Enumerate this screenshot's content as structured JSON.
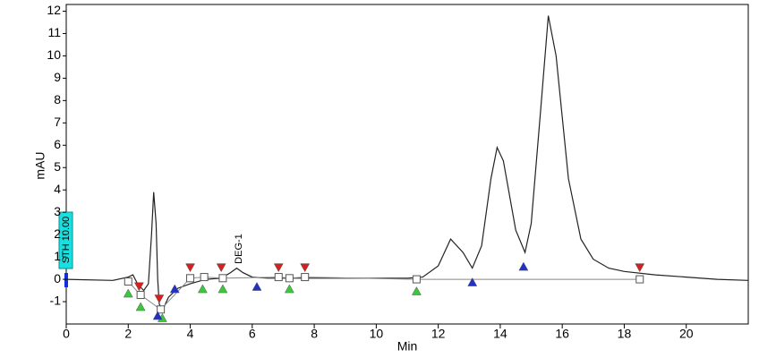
{
  "chart_data": {
    "type": "line",
    "x_label": "Min",
    "y_label": "mAU",
    "annotation": "DEG-1",
    "threshold_label": "STH 10.00",
    "xlim": [
      0,
      22
    ],
    "ylim": [
      -2,
      12.3
    ],
    "xticks": [
      0,
      2,
      4,
      6,
      8,
      10,
      12,
      14,
      16,
      18,
      20
    ],
    "yticks": [
      -1,
      0,
      1,
      2,
      3,
      4,
      5,
      6,
      7,
      8,
      9,
      10,
      11,
      12
    ],
    "grid": false,
    "series": [
      {
        "style": "line",
        "color": "#222222",
        "x": [
          0,
          1.5,
          2.0,
          2.15,
          2.3,
          2.5,
          2.65,
          2.75,
          2.82,
          2.9,
          2.95,
          3.0,
          3.1,
          3.3,
          3.6,
          4.0,
          4.5,
          5.0,
          5.3,
          5.5,
          5.7,
          6.0,
          6.5,
          7,
          8,
          9,
          10,
          11,
          11.5,
          12,
          12.4,
          12.8,
          13.1,
          13.4,
          13.7,
          13.9,
          14.1,
          14.5,
          14.8,
          15.0,
          15.3,
          15.55,
          15.8,
          16.2,
          16.6,
          17,
          17.5,
          18,
          19,
          20,
          21,
          22
        ],
        "values": [
          0,
          -0.05,
          0.1,
          0.2,
          -0.2,
          -0.5,
          -0.2,
          2,
          3.9,
          2.5,
          0,
          -1.1,
          -1.4,
          -0.8,
          -0.4,
          -0.2,
          0,
          0.05,
          0.3,
          0.5,
          0.3,
          0.1,
          0.05,
          0.05,
          0.05,
          0.05,
          0.05,
          0.05,
          0.1,
          0.6,
          1.8,
          1.2,
          0.5,
          1.5,
          4.5,
          5.9,
          5.3,
          2.2,
          1.2,
          2.5,
          7.5,
          11.8,
          10,
          4.5,
          1.8,
          0.9,
          0.5,
          0.35,
          0.2,
          0.1,
          0.0,
          -0.05
        ]
      },
      {
        "style": "line-squares",
        "color": "#888888",
        "x": [
          2.0,
          2.4,
          3.05,
          4.0,
          4.45,
          5.05,
          6.85,
          7.2,
          7.7,
          11.3,
          18.5
        ],
        "values": [
          -0.1,
          -0.7,
          -1.35,
          0.05,
          0.1,
          0.05,
          0.1,
          0.05,
          0.1,
          0.0,
          0.0
        ]
      },
      {
        "style": "triangle-down",
        "color": "#d62020",
        "x": [
          2.35,
          3.0,
          4.0,
          5.0,
          6.85,
          7.7,
          18.5
        ],
        "values": [
          -0.35,
          -0.9,
          0.5,
          0.5,
          0.5,
          0.5,
          0.5
        ]
      },
      {
        "style": "triangle-up",
        "color": "#3cc83c",
        "x": [
          2.0,
          2.4,
          3.1,
          4.4,
          5.05,
          7.2,
          11.3
        ],
        "values": [
          -0.6,
          -1.2,
          -1.7,
          -0.4,
          -0.4,
          -0.4,
          -0.5
        ]
      },
      {
        "style": "triangle-up",
        "color": "#2030c8",
        "x": [
          2.95,
          3.5,
          6.15,
          13.1,
          14.75
        ],
        "values": [
          -1.6,
          -0.4,
          -0.3,
          -0.1,
          0.6
        ]
      }
    ]
  }
}
